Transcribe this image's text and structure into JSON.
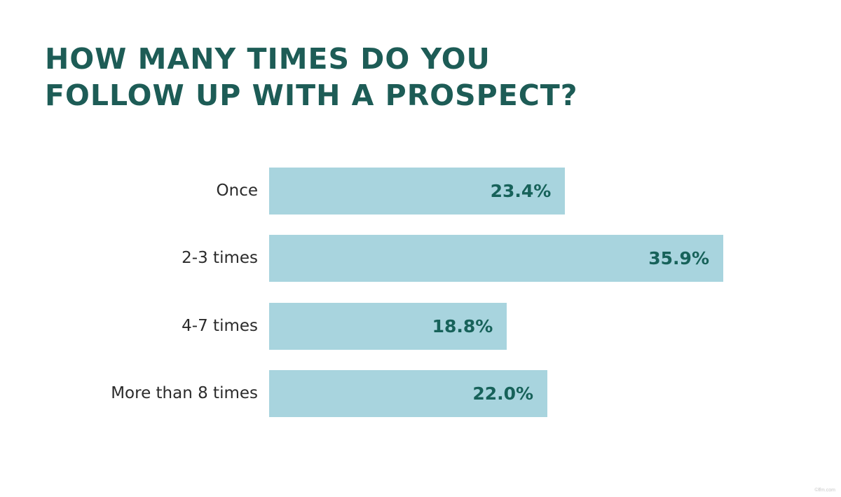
{
  "title": {
    "line1": "HOW MANY TIMES DO YOU",
    "line2": "FOLLOW UP WITH A PROSPECT?"
  },
  "colors": {
    "title": "#1d5c56",
    "bar": "#a8d4de",
    "value_label": "#17625a",
    "category_label": "#2b2b2b",
    "background": "#ffffff"
  },
  "watermark": "©lfm.com",
  "chart_data": {
    "type": "bar",
    "orientation": "horizontal",
    "title": "How many times do you follow up with a prospect?",
    "categories": [
      "Once",
      "2-3 times",
      "4-7 times",
      "More than 8 times"
    ],
    "values": [
      23.4,
      35.9,
      18.8,
      22.0
    ],
    "value_labels": [
      "23.4%",
      "35.9%",
      "18.8%",
      "22.0%"
    ],
    "xlabel": "",
    "ylabel": "",
    "unit": "%",
    "xlim": [
      0,
      35.9
    ],
    "grid": false,
    "legend": null
  }
}
